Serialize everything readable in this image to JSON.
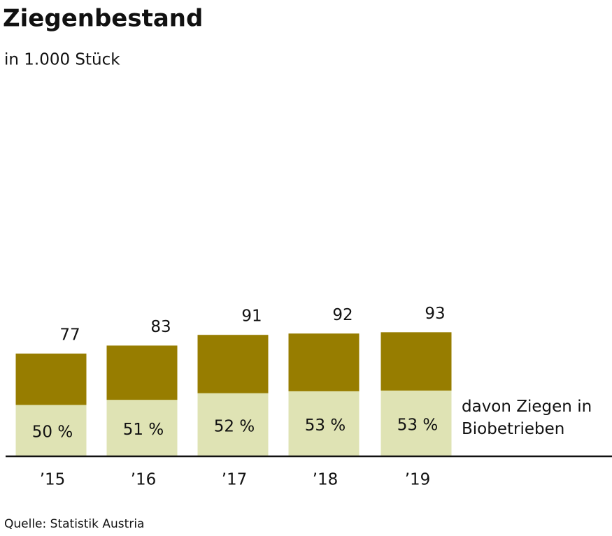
{
  "chart_data": {
    "type": "bar",
    "title": "Ziegenbestand",
    "subtitle": "in 1.000 Stück",
    "source": "Quelle: Statistik Austria",
    "categories": [
      "’15",
      "’16",
      "’17",
      "’18",
      "’19"
    ],
    "ylim": [
      0,
      100
    ],
    "series": [
      {
        "name": "Ziegenbestand",
        "color": "#977d00",
        "values": [
          77,
          83,
          91,
          92,
          93
        ]
      },
      {
        "name": "davon Ziegen in Biobetrieben",
        "color": "#dfe3b4",
        "values": [
          50,
          51,
          52,
          53,
          53
        ],
        "value_labels": [
          "50 %",
          "51 %",
          "52 %",
          "53 %",
          "53 %"
        ]
      }
    ]
  }
}
